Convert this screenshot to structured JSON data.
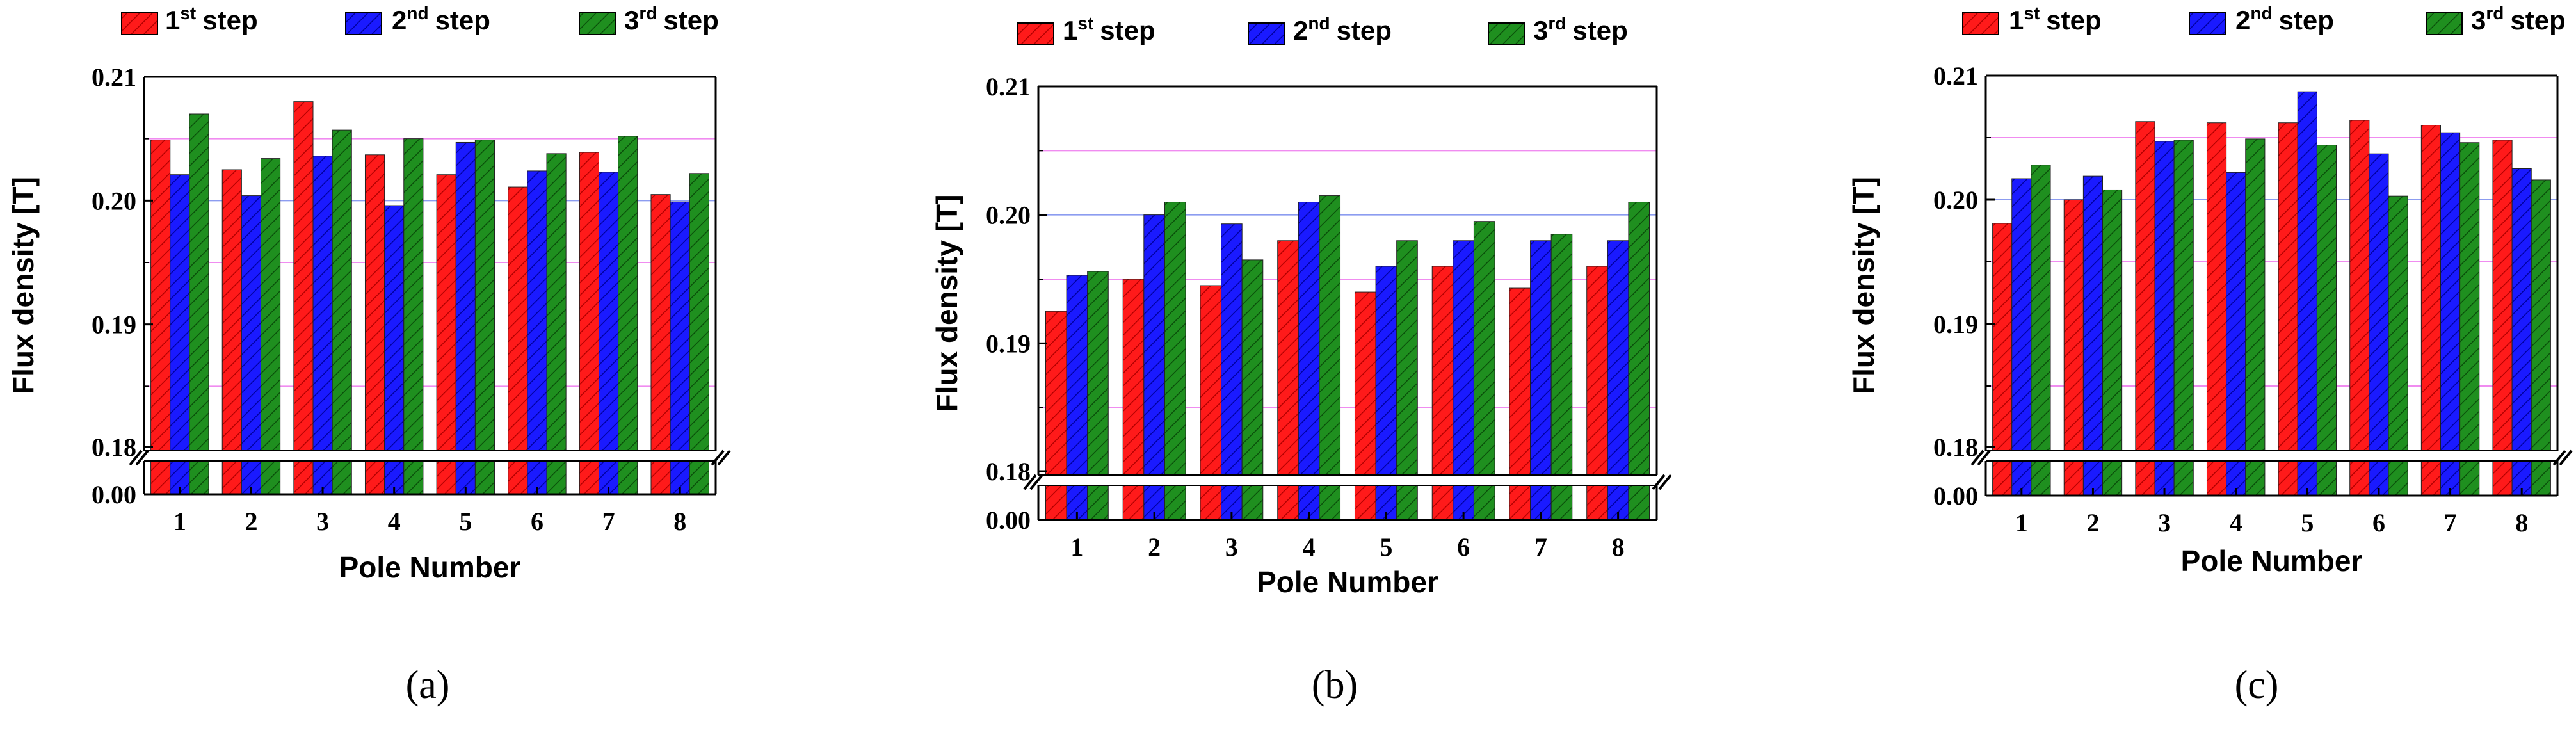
{
  "figure": {
    "panels": [
      "(a)",
      "(b)",
      "(c)"
    ],
    "legend": [
      {
        "num": "1",
        "sup": "st",
        "word": "step",
        "color": "#ff1a1a"
      },
      {
        "num": "2",
        "sup": "nd",
        "word": "step",
        "color": "#1a1aff"
      },
      {
        "num": "3",
        "sup": "rd",
        "word": "step",
        "color": "#1f8f1f"
      }
    ],
    "gridline_colors": {
      "ref_0205": "#f08cf0",
      "ref_0200": "#8c9cf0",
      "ref_0195": "#f08cf0",
      "ref_0185": "#f08cf0"
    },
    "axis_break_symbol": "//"
  },
  "chart_data": [
    {
      "type": "bar",
      "panel": "(a)",
      "title": "",
      "xlabel": "Pole Number",
      "ylabel": "Flux density [T]",
      "categories": [
        "1",
        "2",
        "3",
        "4",
        "5",
        "6",
        "7",
        "8"
      ],
      "ylim": [
        0.18,
        0.21
      ],
      "broken_axis": {
        "lower_tick": "0.00",
        "upper_ticks": [
          "0.18",
          "0.19",
          "0.20",
          "0.21"
        ]
      },
      "series": [
        {
          "name": "1st step",
          "values": [
            0.2049,
            0.2025,
            0.208,
            0.2037,
            0.2021,
            0.2011,
            0.2039,
            0.2005
          ]
        },
        {
          "name": "2nd step",
          "values": [
            0.2021,
            0.2004,
            0.2036,
            0.1996,
            0.2047,
            0.2024,
            0.2023,
            0.1999
          ]
        },
        {
          "name": "3rd step",
          "values": [
            0.207,
            0.2034,
            0.2057,
            0.205,
            0.2049,
            0.2038,
            0.2052,
            0.2022
          ]
        }
      ]
    },
    {
      "type": "bar",
      "panel": "(b)",
      "title": "",
      "xlabel": "Pole Number",
      "ylabel": "Flux density [T]",
      "categories": [
        "1",
        "2",
        "3",
        "4",
        "5",
        "6",
        "7",
        "8"
      ],
      "ylim": [
        0.18,
        0.21
      ],
      "broken_axis": {
        "lower_tick": "0.00",
        "upper_ticks": [
          "0.18",
          "0.19",
          "0.20",
          "0.21"
        ]
      },
      "series": [
        {
          "name": "1st step",
          "values": [
            0.1925,
            0.195,
            0.1945,
            0.198,
            0.194,
            0.196,
            0.1943,
            0.196
          ]
        },
        {
          "name": "2nd step",
          "values": [
            0.1953,
            0.2,
            0.1993,
            0.201,
            0.196,
            0.198,
            0.198,
            0.198
          ]
        },
        {
          "name": "3rd step",
          "values": [
            0.1956,
            0.201,
            0.1965,
            0.2015,
            0.198,
            0.1995,
            0.1985,
            0.201
          ]
        }
      ]
    },
    {
      "type": "bar",
      "panel": "(c)",
      "title": "",
      "xlabel": "Pole Number",
      "ylabel": "Flux density [T]",
      "categories": [
        "1",
        "2",
        "3",
        "4",
        "5",
        "6",
        "7",
        "8"
      ],
      "ylim": [
        0.18,
        0.21
      ],
      "broken_axis": {
        "lower_tick": "0.00",
        "upper_ticks": [
          "0.18",
          "0.19",
          "0.20",
          "0.21"
        ]
      },
      "series": [
        {
          "name": "1st step",
          "values": [
            0.1981,
            0.2,
            0.2063,
            0.2062,
            0.2062,
            0.2064,
            0.206,
            0.2048
          ]
        },
        {
          "name": "2nd step",
          "values": [
            0.2017,
            0.2019,
            0.2047,
            0.2022,
            0.2087,
            0.2037,
            0.2054,
            0.2025
          ]
        },
        {
          "name": "3rd step",
          "values": [
            0.2028,
            0.2008,
            0.2048,
            0.2049,
            0.2044,
            0.2003,
            0.2046,
            0.2016
          ]
        }
      ]
    }
  ]
}
